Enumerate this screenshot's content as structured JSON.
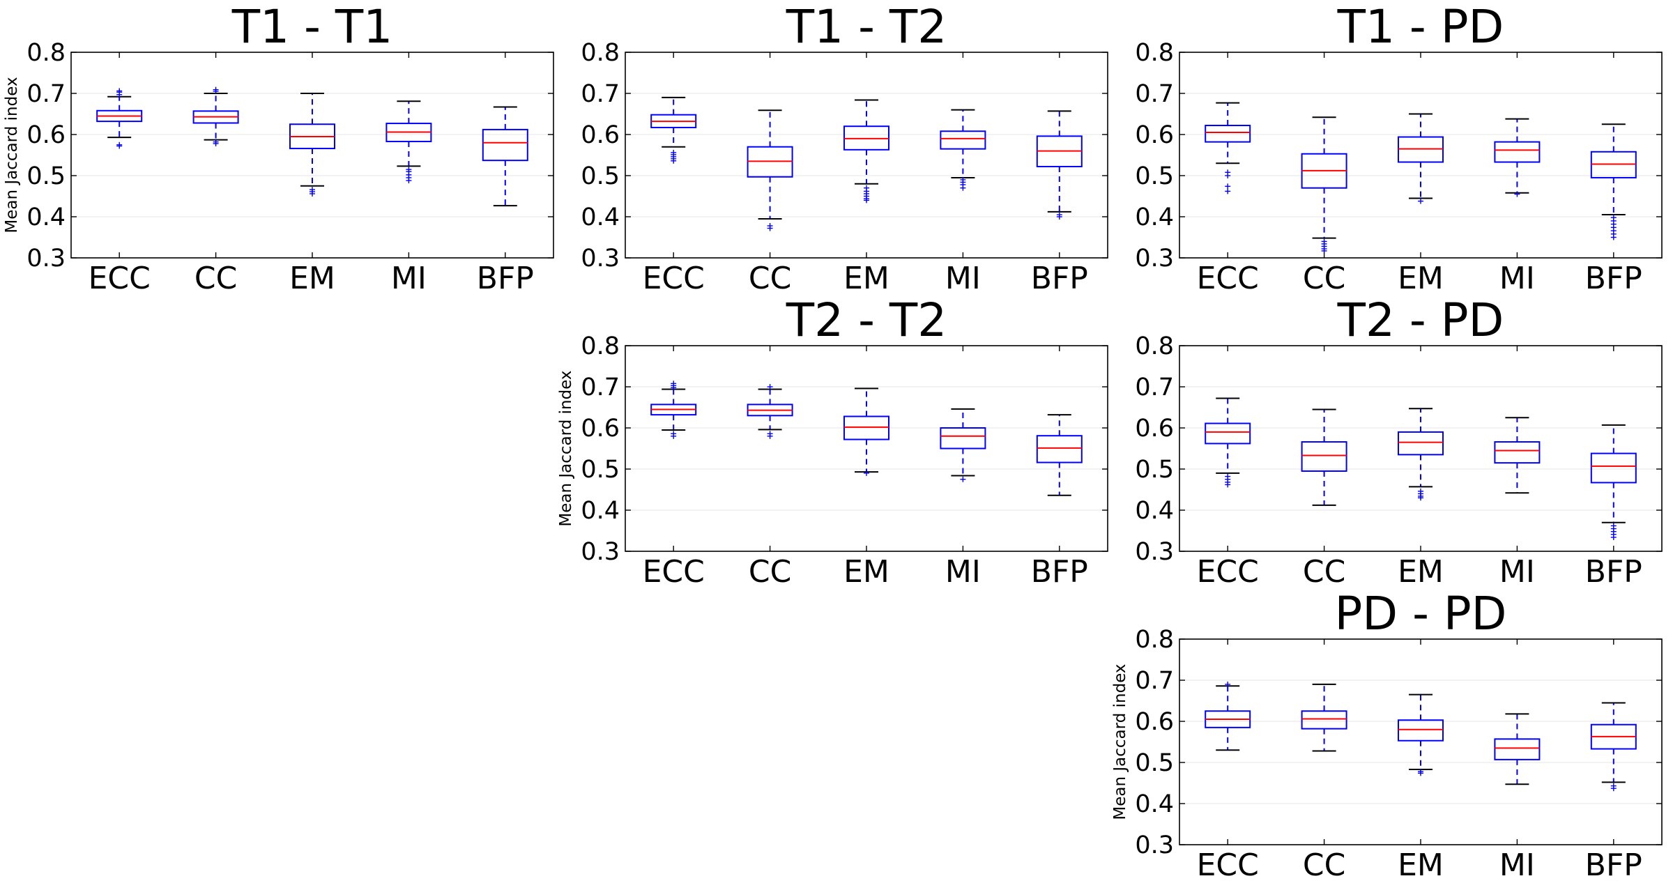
{
  "chart_data": [
    {
      "type": "boxplot",
      "title": "T1 - T1",
      "ylabel": "Mean Jaccard index",
      "ylim": [
        0.3,
        0.8
      ],
      "yticks": [
        "0.3",
        "0.4",
        "0.5",
        "0.6",
        "0.7",
        "0.8"
      ],
      "categories": [
        "ECC",
        "CC",
        "EM",
        "MI",
        "BFP"
      ],
      "boxes": [
        {
          "label": "ECC",
          "whislo": 0.593,
          "q1": 0.632,
          "med": 0.645,
          "q3": 0.658,
          "whishi": 0.692,
          "fliers": [
            0.572,
            0.575,
            0.697,
            0.703,
            0.706
          ]
        },
        {
          "label": "CC",
          "whislo": 0.587,
          "q1": 0.628,
          "med": 0.643,
          "q3": 0.657,
          "whishi": 0.7,
          "fliers": [
            0.578,
            0.582,
            0.705,
            0.709
          ]
        },
        {
          "label": "EM",
          "whislo": 0.475,
          "q1": 0.566,
          "med": 0.595,
          "q3": 0.625,
          "whishi": 0.7,
          "fliers": [
            0.466,
            0.461,
            0.456
          ]
        },
        {
          "label": "MI",
          "whislo": 0.523,
          "q1": 0.583,
          "med": 0.606,
          "q3": 0.627,
          "whishi": 0.681,
          "fliers": [
            0.515,
            0.51,
            0.502,
            0.495,
            0.488
          ]
        },
        {
          "label": "BFP",
          "whislo": 0.427,
          "q1": 0.537,
          "med": 0.58,
          "q3": 0.612,
          "whishi": 0.667,
          "fliers": []
        }
      ]
    },
    {
      "type": "boxplot",
      "title": "T1 - T2",
      "ylabel": "",
      "ylim": [
        0.3,
        0.8
      ],
      "yticks": [
        "0.3",
        "0.4",
        "0.5",
        "0.6",
        "0.7",
        "0.8"
      ],
      "categories": [
        "ECC",
        "CC",
        "EM",
        "MI",
        "BFP"
      ],
      "boxes": [
        {
          "label": "ECC",
          "whislo": 0.57,
          "q1": 0.617,
          "med": 0.632,
          "q3": 0.648,
          "whishi": 0.69,
          "fliers": [
            0.556,
            0.551,
            0.546,
            0.541,
            0.536
          ]
        },
        {
          "label": "CC",
          "whislo": 0.395,
          "q1": 0.497,
          "med": 0.535,
          "q3": 0.57,
          "whishi": 0.659,
          "fliers": [
            0.378,
            0.372
          ]
        },
        {
          "label": "EM",
          "whislo": 0.48,
          "q1": 0.563,
          "med": 0.59,
          "q3": 0.62,
          "whishi": 0.684,
          "fliers": [
            0.47,
            0.462,
            0.456,
            0.45,
            0.444,
            0.44
          ]
        },
        {
          "label": "MI",
          "whislo": 0.495,
          "q1": 0.565,
          "med": 0.59,
          "q3": 0.608,
          "whishi": 0.66,
          "fliers": [
            0.49,
            0.484,
            0.478,
            0.47
          ]
        },
        {
          "label": "BFP",
          "whislo": 0.412,
          "q1": 0.522,
          "med": 0.56,
          "q3": 0.596,
          "whishi": 0.657,
          "fliers": [
            0.405,
            0.4
          ]
        }
      ]
    },
    {
      "type": "boxplot",
      "title": "T1 - PD",
      "ylabel": "",
      "ylim": [
        0.3,
        0.8
      ],
      "yticks": [
        "0.3",
        "0.4",
        "0.5",
        "0.6",
        "0.7",
        "0.8"
      ],
      "categories": [
        "ECC",
        "CC",
        "EM",
        "MI",
        "BFP"
      ],
      "boxes": [
        {
          "label": "ECC",
          "whislo": 0.53,
          "q1": 0.582,
          "med": 0.605,
          "q3": 0.622,
          "whishi": 0.677,
          "fliers": [
            0.508,
            0.5,
            0.474,
            0.462
          ]
        },
        {
          "label": "CC",
          "whislo": 0.348,
          "q1": 0.47,
          "med": 0.512,
          "q3": 0.553,
          "whishi": 0.642,
          "fliers": [
            0.34,
            0.334,
            0.328,
            0.322,
            0.317
          ]
        },
        {
          "label": "EM",
          "whislo": 0.445,
          "q1": 0.533,
          "med": 0.565,
          "q3": 0.594,
          "whishi": 0.65,
          "fliers": [
            0.438
          ]
        },
        {
          "label": "MI",
          "whislo": 0.458,
          "q1": 0.533,
          "med": 0.562,
          "q3": 0.582,
          "whishi": 0.638,
          "fliers": [
            0.455
          ]
        },
        {
          "label": "BFP",
          "whislo": 0.405,
          "q1": 0.495,
          "med": 0.528,
          "q3": 0.558,
          "whishi": 0.625,
          "fliers": [
            0.398,
            0.39,
            0.382,
            0.374,
            0.366,
            0.358,
            0.35
          ]
        }
      ]
    },
    {
      "type": "boxplot",
      "title": "T2 - T2",
      "ylabel": "Mean Jaccard index",
      "ylim": [
        0.3,
        0.8
      ],
      "yticks": [
        "0.3",
        "0.4",
        "0.5",
        "0.6",
        "0.7",
        "0.8"
      ],
      "categories": [
        "ECC",
        "CC",
        "EM",
        "MI",
        "BFP"
      ],
      "boxes": [
        {
          "label": "ECC",
          "whislo": 0.595,
          "q1": 0.632,
          "med": 0.645,
          "q3": 0.657,
          "whishi": 0.694,
          "fliers": [
            0.586,
            0.58,
            0.698,
            0.703,
            0.708
          ]
        },
        {
          "label": "CC",
          "whislo": 0.596,
          "q1": 0.63,
          "med": 0.643,
          "q3": 0.657,
          "whishi": 0.694,
          "fliers": [
            0.586,
            0.58,
            0.7
          ]
        },
        {
          "label": "EM",
          "whislo": 0.493,
          "q1": 0.572,
          "med": 0.602,
          "q3": 0.628,
          "whishi": 0.696,
          "fliers": [
            0.49
          ]
        },
        {
          "label": "MI",
          "whislo": 0.484,
          "q1": 0.55,
          "med": 0.58,
          "q3": 0.6,
          "whishi": 0.646,
          "fliers": [
            0.475
          ]
        },
        {
          "label": "BFP",
          "whislo": 0.436,
          "q1": 0.516,
          "med": 0.551,
          "q3": 0.581,
          "whishi": 0.632,
          "fliers": []
        }
      ]
    },
    {
      "type": "boxplot",
      "title": "T2 - PD",
      "ylabel": "",
      "ylim": [
        0.3,
        0.8
      ],
      "yticks": [
        "0.3",
        "0.4",
        "0.5",
        "0.6",
        "0.7",
        "0.8"
      ],
      "categories": [
        "ECC",
        "CC",
        "EM",
        "MI",
        "BFP"
      ],
      "boxes": [
        {
          "label": "ECC",
          "whislo": 0.49,
          "q1": 0.562,
          "med": 0.59,
          "q3": 0.611,
          "whishi": 0.672,
          "fliers": [
            0.482,
            0.475,
            0.468,
            0.462
          ]
        },
        {
          "label": "CC",
          "whislo": 0.412,
          "q1": 0.495,
          "med": 0.533,
          "q3": 0.566,
          "whishi": 0.645,
          "fliers": []
        },
        {
          "label": "EM",
          "whislo": 0.457,
          "q1": 0.535,
          "med": 0.565,
          "q3": 0.59,
          "whishi": 0.647,
          "fliers": [
            0.446,
            0.44,
            0.434,
            0.43
          ]
        },
        {
          "label": "MI",
          "whislo": 0.442,
          "q1": 0.515,
          "med": 0.545,
          "q3": 0.566,
          "whishi": 0.625,
          "fliers": []
        },
        {
          "label": "BFP",
          "whislo": 0.37,
          "q1": 0.467,
          "med": 0.507,
          "q3": 0.538,
          "whishi": 0.607,
          "fliers": [
            0.362,
            0.355,
            0.348,
            0.341,
            0.334
          ]
        }
      ]
    },
    {
      "type": "boxplot",
      "title": "PD - PD",
      "ylabel": "Mean Jaccard index",
      "ylim": [
        0.3,
        0.8
      ],
      "yticks": [
        "0.3",
        "0.4",
        "0.5",
        "0.6",
        "0.7",
        "0.8"
      ],
      "categories": [
        "ECC",
        "CC",
        "EM",
        "MI",
        "BFP"
      ],
      "boxes": [
        {
          "label": "ECC",
          "whislo": 0.53,
          "q1": 0.585,
          "med": 0.605,
          "q3": 0.625,
          "whishi": 0.686,
          "fliers": [
            0.69
          ]
        },
        {
          "label": "CC",
          "whislo": 0.528,
          "q1": 0.582,
          "med": 0.606,
          "q3": 0.625,
          "whishi": 0.69,
          "fliers": []
        },
        {
          "label": "EM",
          "whislo": 0.483,
          "q1": 0.553,
          "med": 0.58,
          "q3": 0.603,
          "whishi": 0.665,
          "fliers": [
            0.478,
            0.474
          ]
        },
        {
          "label": "MI",
          "whislo": 0.447,
          "q1": 0.507,
          "med": 0.535,
          "q3": 0.557,
          "whishi": 0.618,
          "fliers": []
        },
        {
          "label": "BFP",
          "whislo": 0.452,
          "q1": 0.533,
          "med": 0.563,
          "q3": 0.592,
          "whishi": 0.645,
          "fliers": [
            0.443,
            0.437
          ]
        }
      ]
    }
  ]
}
